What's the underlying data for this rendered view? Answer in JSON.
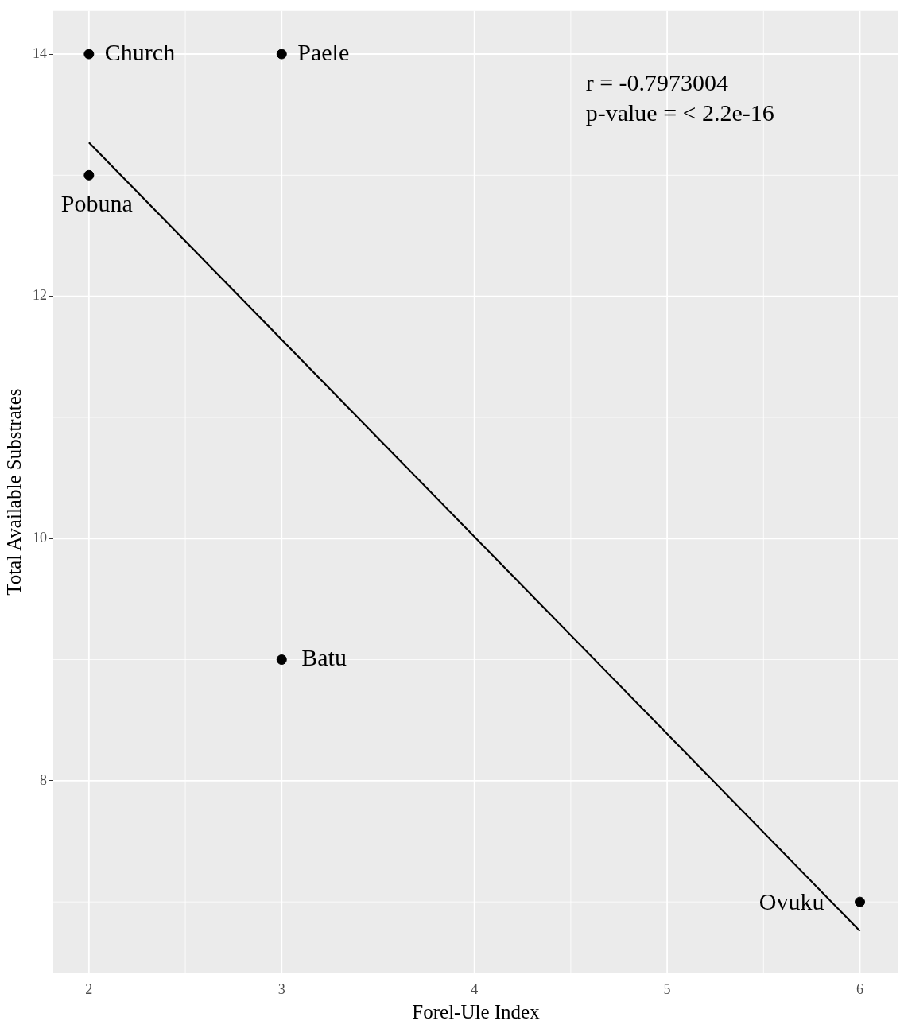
{
  "chart_data": {
    "type": "scatter",
    "xlabel": "Forel-Ule Index",
    "ylabel": "Total Available Substrates",
    "xlim": [
      1.815,
      6.2
    ],
    "ylim": [
      6.414,
      14.356
    ],
    "xticks": [
      2,
      3,
      4,
      5,
      6
    ],
    "yticks": [
      8,
      10,
      12,
      14
    ],
    "grid": true,
    "legend": false,
    "marker": "circle",
    "series": [
      {
        "color": "#000000",
        "x": [
          2,
          3,
          2,
          3,
          6
        ],
        "values": [
          14,
          14,
          13,
          9,
          7
        ]
      },
      {
        "type": "line",
        "color": "#000000",
        "x": [
          2,
          6
        ],
        "values": [
          13.27,
          6.76
        ],
        "marker": "none",
        "line_style": "solid"
      }
    ],
    "annotations": [
      {
        "text": "Church",
        "x": 2,
        "y": 14
      },
      {
        "text": "Paele",
        "x": 3,
        "y": 14
      },
      {
        "text": "Pobuna",
        "x": 2,
        "y": 13
      },
      {
        "text": "Batu",
        "x": 3,
        "y": 9
      },
      {
        "text": "Ovuku",
        "x": 6,
        "y": 7
      },
      "r = -0.7973004",
      "p-value = < 2.2e-16"
    ]
  }
}
